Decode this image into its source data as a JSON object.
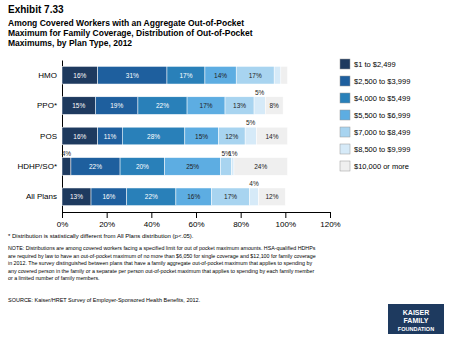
{
  "chart_data": {
    "type": "bar",
    "orientation": "horizontal",
    "stacked": true,
    "data_labels": true,
    "grid": false,
    "legend": "right",
    "title": "Exhibit 7.33",
    "subtitle": "Among Covered Workers with an Aggregate Out-of-Pocket\nMaximum for Family Coverage, Distribution of Out-of-Pocket\nMaximums, by Plan Type, 2012",
    "categories": [
      "All Plans",
      "HDHP/SO*",
      "POS",
      "PPO*",
      "HMO"
    ],
    "series": [
      {
        "name": "$1 to $2,499",
        "color": "#1e3a5f",
        "values": [
          13,
          4,
          16,
          15,
          16
        ],
        "value_labels": [
          "13%",
          "4%",
          "16%",
          "15%",
          "16%"
        ]
      },
      {
        "name": "$2,500 to $3,999",
        "color": "#1e5f9e",
        "values": [
          16,
          22,
          11,
          19,
          31
        ],
        "value_labels": [
          "16%",
          "22%",
          "11%",
          "19%",
          "31%"
        ]
      },
      {
        "name": "$4,000 to $5,499",
        "color": "#2980b9",
        "values": [
          22,
          20,
          28,
          22,
          17
        ],
        "value_labels": [
          "22%",
          "20%",
          "28%",
          "22%",
          "17%"
        ]
      },
      {
        "name": "$5,500 to $6,999",
        "color": "#5dade2",
        "values": [
          16,
          25,
          15,
          17,
          14
        ],
        "value_labels": [
          "16%",
          "25%",
          "15%",
          "17%",
          "14%"
        ]
      },
      {
        "name": "$7,000 to $8,499",
        "color": "#a8d4f0",
        "values": [
          17,
          5,
          12,
          13,
          17
        ],
        "value_labels": [
          "17%",
          "5%",
          "12%",
          "13%",
          "17%"
        ]
      },
      {
        "name": "$8,500 to $9,999",
        "color": "#d6eaf8",
        "values": [
          4,
          1,
          5,
          5,
          3
        ],
        "value_labels": [
          "4%",
          "1%",
          "5%",
          "5%",
          null
        ]
      },
      {
        "name": "$10,000 or more",
        "color": "#efefef",
        "values": [
          12,
          24,
          14,
          8,
          3
        ],
        "value_labels": [
          "12%",
          "24%",
          "14%",
          "8%",
          null
        ]
      }
    ],
    "xlim": [
      0,
      120
    ],
    "xticks": [
      {
        "value": 0,
        "label": "0%"
      },
      {
        "value": 20,
        "label": "20%"
      },
      {
        "value": 40,
        "label": "40%"
      },
      {
        "value": 60,
        "label": "60%"
      },
      {
        "value": 80,
        "label": "80%"
      },
      {
        "value": 100,
        "label": "100%"
      },
      {
        "value": 120,
        "label": "120%"
      }
    ],
    "footnotes": [
      "* Distribution is statistically different from All Plans distribution (p<.05).",
      "NOTE: Distributions are among covered workers facing a specified limit for out of pocket maximum amounts. HSA-qualified HDHPs\nare required by law to have an out-of-pocket maximum of no more than $6,050 for single coverage and $12,100 for family coverage\nin 2012.  The survey distinguished between plans that have a family aggregate out-of-pocket maximum that applies to spending by\nany covered person in the family or a separate per person out-of-pocket maximum that applies to spending by each family member\nor a limited number of family members.",
      "SOURCE:  Kaiser/HRET Survey of Employer-Sponsored Health Benefits, 2012."
    ],
    "logo": [
      "KAISER",
      "FAMILY",
      "FOUNDATION"
    ]
  }
}
